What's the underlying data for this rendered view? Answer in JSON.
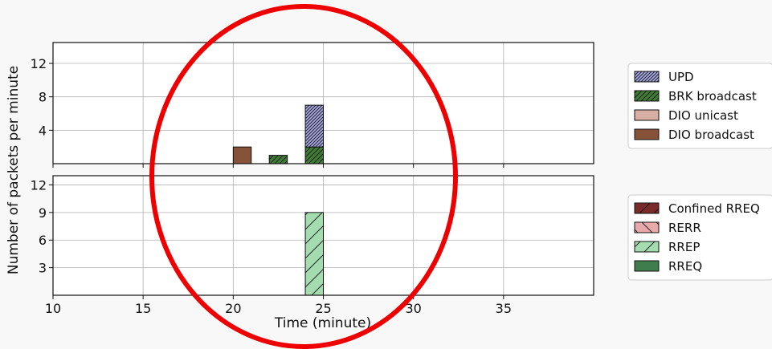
{
  "figure": {
    "ylabel": "Number of packets per minute",
    "xlabel": "Time (minute)"
  },
  "chart_data": [
    {
      "type": "bar",
      "stacked": true,
      "xlim": [
        10,
        40
      ],
      "ylim": [
        0,
        14.5
      ],
      "xticks": [
        10,
        15,
        20,
        25,
        30,
        35
      ],
      "yticks": [
        4,
        8,
        12
      ],
      "grid": true,
      "legend_position": "right",
      "series": [
        {
          "name": "UPD",
          "color": "#a7a8e3",
          "hatch": "dense-diagonal",
          "points": [
            {
              "x": 24,
              "y": 5
            }
          ]
        },
        {
          "name": "BRK broadcast",
          "color": "#3f7d32",
          "hatch": "diagonal",
          "points": [
            {
              "x": 22,
              "y": 1
            },
            {
              "x": 24,
              "y": 2
            }
          ]
        },
        {
          "name": "DIO unicast",
          "color": "#d8aea4",
          "hatch": "none",
          "points": []
        },
        {
          "name": "DIO broadcast",
          "color": "#87523a",
          "hatch": "none",
          "points": [
            {
              "x": 20,
              "y": 2
            }
          ]
        }
      ],
      "stack_order": [
        "DIO broadcast",
        "BRK broadcast",
        "DIO unicast",
        "UPD"
      ]
    },
    {
      "type": "bar",
      "stacked": true,
      "xlim": [
        10,
        40
      ],
      "ylim": [
        0,
        13
      ],
      "xticks": [
        10,
        15,
        20,
        25,
        30,
        35
      ],
      "yticks": [
        3,
        6,
        9,
        12
      ],
      "grid": true,
      "legend_position": "right",
      "series": [
        {
          "name": "Confined RREQ",
          "color": "#7a2a2a",
          "hatch": "slash",
          "points": []
        },
        {
          "name": "RERR",
          "color": "#e8a9ab",
          "hatch": "backslash",
          "points": []
        },
        {
          "name": "RREP",
          "color": "#a4dcb0",
          "hatch": "slash",
          "points": [
            {
              "x": 24,
              "y": 9
            }
          ]
        },
        {
          "name": "RREQ",
          "color": "#3f7d4c",
          "hatch": "none",
          "points": []
        }
      ],
      "stack_order": [
        "RREQ",
        "RREP",
        "RERR",
        "Confined RREQ"
      ]
    }
  ],
  "annotation": {
    "shape": "ellipse",
    "color": "#ee0000"
  }
}
